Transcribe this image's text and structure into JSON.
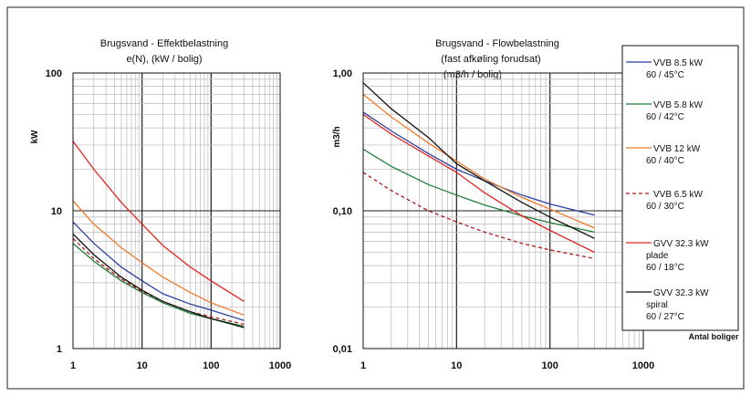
{
  "chart_data": [
    {
      "type": "line",
      "title": "Brugsvand - Effektbelastning",
      "subtitle": "e(N),  (kW / bolig)",
      "ylabel": "kW",
      "xlabel": "",
      "x_scale": "log",
      "y_scale": "log",
      "xlim": [
        1,
        1000
      ],
      "ylim": [
        1,
        100
      ],
      "x_ticks": [
        "1",
        "10",
        "100",
        "1000"
      ],
      "y_ticks": [
        "1",
        "10",
        "100"
      ],
      "grid": true,
      "series": [
        {
          "name": "VVB 8.5 kW 60 / 45°C",
          "color": "#2b3f9e",
          "dash": "solid",
          "x": [
            1,
            2,
            5,
            10,
            20,
            50,
            100,
            300
          ],
          "y": [
            8.3,
            5.8,
            3.9,
            3.1,
            2.5,
            2.1,
            1.9,
            1.6
          ]
        },
        {
          "name": "VVB 5.8 kW 60 / 42°C",
          "color": "#1e7d3a",
          "dash": "solid",
          "x": [
            1,
            2,
            5,
            10,
            20,
            50,
            100,
            300
          ],
          "y": [
            5.8,
            4.3,
            3.1,
            2.55,
            2.15,
            1.8,
            1.65,
            1.45
          ]
        },
        {
          "name": "VVB 12 kW 60 / 40°C",
          "color": "#f07a2a",
          "dash": "solid",
          "x": [
            1,
            2,
            5,
            10,
            20,
            50,
            100,
            300
          ],
          "y": [
            11.8,
            8.0,
            5.4,
            4.2,
            3.3,
            2.55,
            2.15,
            1.75
          ]
        },
        {
          "name": "VVB 6.5 kW 60 / 30°C",
          "color": "#b01818",
          "dash": "dashed",
          "x": [
            1,
            2,
            5,
            10,
            20,
            50,
            100,
            300
          ],
          "y": [
            6.3,
            4.5,
            3.2,
            2.6,
            2.2,
            1.85,
            1.7,
            1.5
          ]
        },
        {
          "name": "GVV 32.3 kW plade 60 / 18°C",
          "color": "#e02424",
          "dash": "solid",
          "x": [
            1,
            2,
            5,
            10,
            20,
            50,
            100,
            300
          ],
          "y": [
            32,
            20,
            11.5,
            8.0,
            5.6,
            3.9,
            3.1,
            2.2
          ]
        },
        {
          "name": "GVV  32.3 kW spiral 60 / 27°C",
          "color": "#111111",
          "dash": "solid",
          "x": [
            1,
            2,
            5,
            10,
            20,
            50,
            100,
            300
          ],
          "y": [
            6.8,
            4.8,
            3.3,
            2.65,
            2.2,
            1.85,
            1.65,
            1.42
          ]
        }
      ]
    },
    {
      "type": "line",
      "title": "Brugsvand - Flowbelastning",
      "subtitle": "(fast afkøling forudsat)",
      "subtitle2": "(m3/h / bolig)",
      "ylabel": "m3/h",
      "xlabel": "Antal boliger",
      "x_scale": "log",
      "y_scale": "log",
      "xlim": [
        1,
        1000
      ],
      "ylim": [
        0.01,
        1.0
      ],
      "x_ticks": [
        "1",
        "10",
        "100",
        "1000"
      ],
      "y_ticks": [
        "0,01",
        "0,10",
        "1,00"
      ],
      "grid": true,
      "series": [
        {
          "name": "VVB 8.5 kW 60 / 45°C",
          "color": "#2b3f9e",
          "dash": "solid",
          "x": [
            1,
            2,
            5,
            10,
            20,
            50,
            100,
            300
          ],
          "y": [
            0.52,
            0.38,
            0.26,
            0.2,
            0.165,
            0.13,
            0.112,
            0.093
          ]
        },
        {
          "name": "VVB 5.8 kW 60 / 42°C",
          "color": "#1e7d3a",
          "dash": "solid",
          "x": [
            1,
            2,
            5,
            10,
            20,
            50,
            100,
            300
          ],
          "y": [
            0.28,
            0.21,
            0.155,
            0.13,
            0.11,
            0.092,
            0.082,
            0.07
          ]
        },
        {
          "name": "VVB 12 kW 60 / 40°C",
          "color": "#f07a2a",
          "dash": "solid",
          "x": [
            1,
            2,
            5,
            10,
            20,
            50,
            100,
            300
          ],
          "y": [
            0.7,
            0.48,
            0.31,
            0.23,
            0.17,
            0.125,
            0.103,
            0.075
          ]
        },
        {
          "name": "VVB 6.5 kW 60 / 30°C",
          "color": "#b01818",
          "dash": "dashed",
          "x": [
            1,
            2,
            5,
            10,
            20,
            50,
            100,
            300
          ],
          "y": [
            0.19,
            0.14,
            0.1,
            0.083,
            0.07,
            0.058,
            0.052,
            0.045
          ]
        },
        {
          "name": "GVV 32.3 kW plade 60 / 18°C",
          "color": "#e02424",
          "dash": "solid",
          "x": [
            1,
            2,
            5,
            10,
            20,
            50,
            100,
            300
          ],
          "y": [
            0.5,
            0.36,
            0.25,
            0.19,
            0.135,
            0.092,
            0.072,
            0.05
          ]
        },
        {
          "name": "GVV  32.3 kW spiral 60 / 27°C",
          "color": "#111111",
          "dash": "solid",
          "x": [
            1,
            2,
            5,
            10,
            20,
            50,
            100,
            300
          ],
          "y": [
            0.85,
            0.55,
            0.34,
            0.22,
            0.165,
            0.115,
            0.09,
            0.063
          ]
        }
      ]
    }
  ],
  "legend": {
    "entries": [
      {
        "line1": "VVB 8.5 kW",
        "line2": "60 / 45°C",
        "line3": "",
        "color": "#2b3f9e",
        "dash": "solid"
      },
      {
        "line1": "VVB 5.8 kW",
        "line2": "60 / 42°C",
        "line3": "",
        "color": "#1e7d3a",
        "dash": "solid"
      },
      {
        "line1": "VVB 12 kW",
        "line2": "60 / 40°C",
        "line3": "",
        "color": "#f07a2a",
        "dash": "solid"
      },
      {
        "line1": "VVB 6.5 kW",
        "line2": "60 / 30°C",
        "line3": "",
        "color": "#b01818",
        "dash": "dashed"
      },
      {
        "line1": "GVV 32.3 kW",
        "line2": "plade",
        "line3": "60 / 18°C",
        "color": "#e02424",
        "dash": "solid"
      },
      {
        "line1": "GVV  32.3 kW",
        "line2": "spiral",
        "line3": "60 / 27°C",
        "color": "#111111",
        "dash": "solid"
      }
    ]
  }
}
